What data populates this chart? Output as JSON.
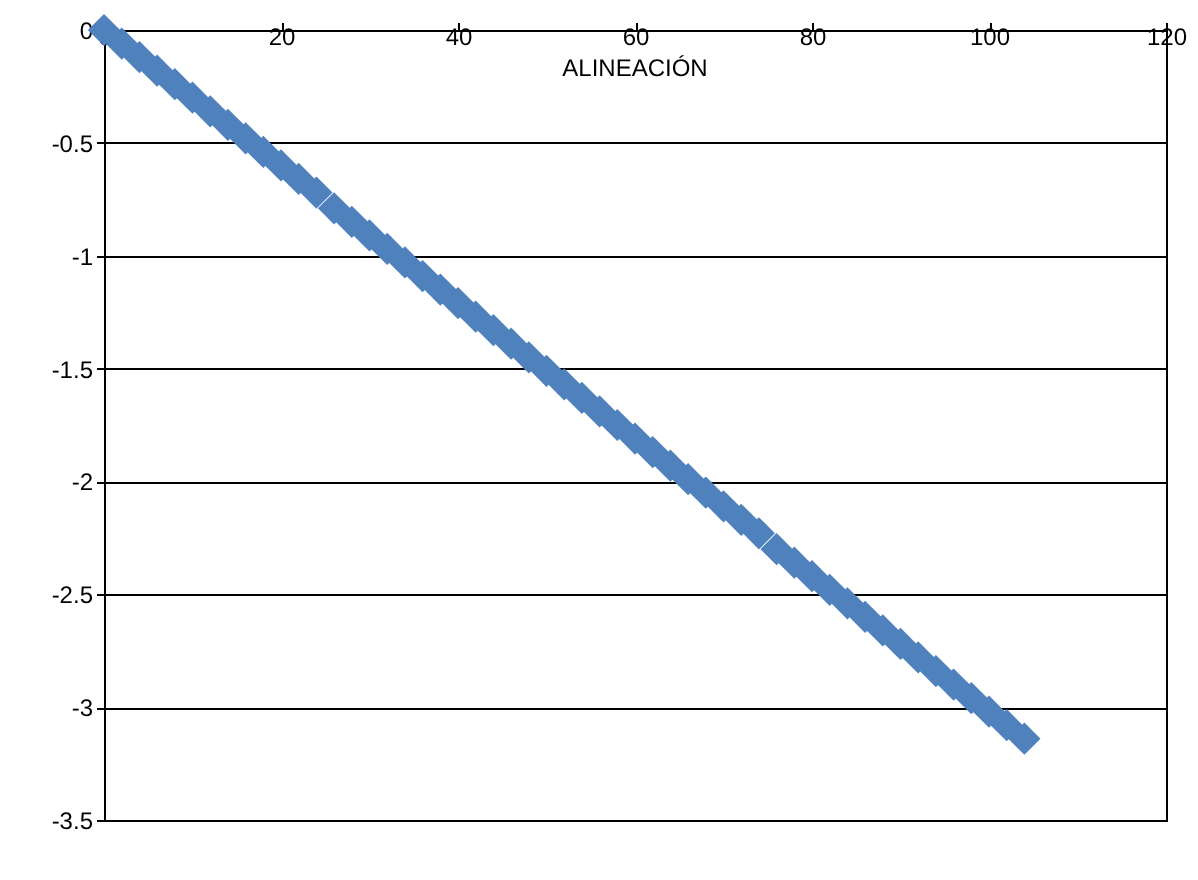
{
  "chart_data": {
    "type": "scatter",
    "title": "ALINEACIÓN",
    "x": [
      0,
      2,
      4,
      6,
      8,
      10,
      12,
      14,
      16,
      18,
      20,
      22,
      24,
      26,
      28,
      30,
      32,
      34,
      36,
      38,
      40,
      42,
      44,
      46,
      48,
      50,
      52,
      54,
      56,
      58,
      60,
      62,
      64,
      66,
      68,
      70,
      72,
      74,
      76,
      78,
      80,
      82,
      84,
      86,
      88,
      90,
      92,
      94,
      96,
      98,
      100,
      102,
      104
    ],
    "series": [
      {
        "color": "#4f81bd",
        "values": [
          0,
          -0.06,
          -0.12,
          -0.18,
          -0.24,
          -0.3,
          -0.36,
          -0.42,
          -0.48,
          -0.54,
          -0.6,
          -0.66,
          -0.72,
          -0.79,
          -0.85,
          -0.91,
          -0.97,
          -1.03,
          -1.09,
          -1.15,
          -1.21,
          -1.27,
          -1.33,
          -1.39,
          -1.45,
          -1.51,
          -1.57,
          -1.63,
          -1.69,
          -1.75,
          -1.81,
          -1.87,
          -1.93,
          -1.99,
          -2.05,
          -2.11,
          -2.17,
          -2.23,
          -2.3,
          -2.36,
          -2.42,
          -2.48,
          -2.54,
          -2.6,
          -2.66,
          -2.72,
          -2.78,
          -2.84,
          -2.9,
          -2.96,
          -3.02,
          -3.08,
          -3.14
        ]
      }
    ],
    "xlim": [
      0,
      120
    ],
    "xticks": [
      0,
      20,
      40,
      60,
      80,
      100,
      120
    ],
    "ylim": [
      -3.5,
      0
    ],
    "yticks": [
      0,
      -0.5,
      -1,
      -1.5,
      -2,
      -2.5,
      -3,
      -3.5
    ],
    "grid": "y",
    "marker": "diamond"
  }
}
